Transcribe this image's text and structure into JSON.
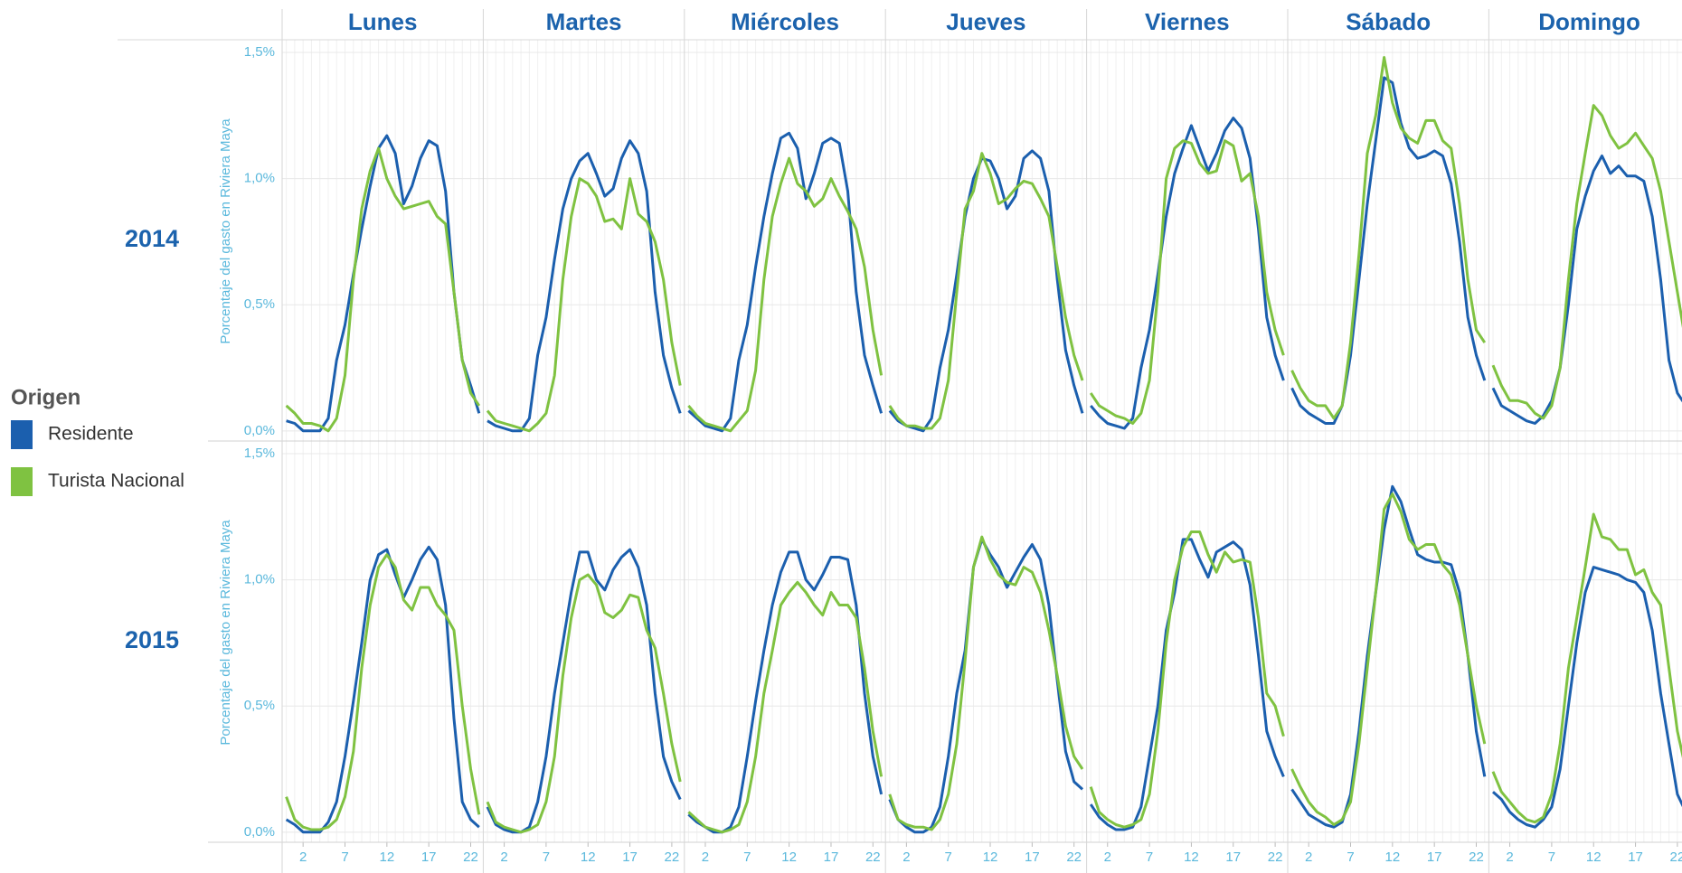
{
  "chart_data": {
    "type": "line",
    "columns": [
      "Lunes",
      "Martes",
      "Miércoles",
      "Jueves",
      "Viernes",
      "Sábado",
      "Domingo"
    ],
    "rows": [
      "2014",
      "2015"
    ],
    "y_label": "Porcentaje del gasto en Riviera Maya",
    "legend_title": "Origen",
    "x": [
      0,
      1,
      2,
      3,
      4,
      5,
      6,
      7,
      8,
      9,
      10,
      11,
      12,
      13,
      14,
      15,
      16,
      17,
      18,
      19,
      20,
      21,
      22,
      23
    ],
    "xlim": [
      -0.5,
      23.5
    ],
    "xticks": [
      2,
      7,
      12,
      17,
      22
    ],
    "ylim": [
      -0.04,
      1.55
    ],
    "yticks": [
      {
        "value": 0,
        "label": "0,0%"
      },
      {
        "value": 0.5,
        "label": "0,5%"
      },
      {
        "value": 1,
        "label": "1,0%"
      },
      {
        "value": 1.5,
        "label": "1,5%"
      }
    ],
    "grid": true,
    "series": [
      {
        "name": "Residente",
        "color": "#1b5fae",
        "values": [
          [
            [
              0.04,
              0.03,
              0.0,
              0.0,
              0.0,
              0.05,
              0.28,
              0.42,
              0.62,
              0.8,
              0.97,
              1.12,
              1.17,
              1.1,
              0.9,
              0.97,
              1.08,
              1.15,
              1.13,
              0.95,
              0.55,
              0.28,
              0.18,
              0.07
            ],
            [
              0.04,
              0.02,
              0.01,
              0.0,
              0.0,
              0.05,
              0.3,
              0.45,
              0.68,
              0.88,
              1.0,
              1.07,
              1.1,
              1.02,
              0.93,
              0.96,
              1.08,
              1.15,
              1.1,
              0.95,
              0.55,
              0.3,
              0.17,
              0.07
            ],
            [
              0.08,
              0.05,
              0.02,
              0.01,
              0.0,
              0.05,
              0.28,
              0.42,
              0.65,
              0.85,
              1.02,
              1.16,
              1.18,
              1.12,
              0.92,
              1.02,
              1.14,
              1.16,
              1.14,
              0.95,
              0.55,
              0.3,
              0.18,
              0.07
            ],
            [
              0.08,
              0.04,
              0.02,
              0.01,
              0.0,
              0.05,
              0.25,
              0.4,
              0.62,
              0.85,
              1.0,
              1.08,
              1.07,
              1.0,
              0.88,
              0.93,
              1.08,
              1.11,
              1.08,
              0.95,
              0.6,
              0.32,
              0.18,
              0.07
            ],
            [
              0.1,
              0.06,
              0.03,
              0.02,
              0.01,
              0.05,
              0.25,
              0.4,
              0.62,
              0.85,
              1.02,
              1.12,
              1.21,
              1.12,
              1.03,
              1.1,
              1.19,
              1.24,
              1.2,
              1.08,
              0.8,
              0.45,
              0.3,
              0.2
            ],
            [
              0.17,
              0.1,
              0.07,
              0.05,
              0.03,
              0.03,
              0.1,
              0.3,
              0.6,
              0.9,
              1.15,
              1.4,
              1.38,
              1.22,
              1.12,
              1.08,
              1.09,
              1.11,
              1.09,
              0.98,
              0.75,
              0.45,
              0.3,
              0.2
            ],
            [
              0.17,
              0.1,
              0.08,
              0.06,
              0.04,
              0.03,
              0.06,
              0.12,
              0.25,
              0.5,
              0.8,
              0.93,
              1.03,
              1.09,
              1.02,
              1.05,
              1.01,
              1.01,
              0.99,
              0.85,
              0.6,
              0.28,
              0.15,
              0.1
            ]
          ],
          [
            [
              0.05,
              0.03,
              0.0,
              0.0,
              0.0,
              0.04,
              0.12,
              0.3,
              0.52,
              0.75,
              1.0,
              1.1,
              1.12,
              1.02,
              0.93,
              1.0,
              1.08,
              1.13,
              1.08,
              0.9,
              0.45,
              0.12,
              0.05,
              0.02
            ],
            [
              0.1,
              0.03,
              0.01,
              0.0,
              0.0,
              0.02,
              0.12,
              0.3,
              0.55,
              0.75,
              0.95,
              1.11,
              1.11,
              1.0,
              0.96,
              1.04,
              1.09,
              1.12,
              1.05,
              0.9,
              0.55,
              0.3,
              0.2,
              0.13
            ],
            [
              0.07,
              0.04,
              0.02,
              0.0,
              0.0,
              0.02,
              0.1,
              0.3,
              0.52,
              0.72,
              0.9,
              1.03,
              1.11,
              1.11,
              1.0,
              0.96,
              1.02,
              1.09,
              1.09,
              1.08,
              0.9,
              0.55,
              0.3,
              0.15
            ],
            [
              0.13,
              0.05,
              0.02,
              0.0,
              0.0,
              0.02,
              0.1,
              0.3,
              0.55,
              0.72,
              1.05,
              1.16,
              1.1,
              1.05,
              0.97,
              1.03,
              1.09,
              1.14,
              1.08,
              0.9,
              0.6,
              0.32,
              0.2,
              0.17
            ],
            [
              0.11,
              0.06,
              0.03,
              0.01,
              0.01,
              0.02,
              0.1,
              0.3,
              0.5,
              0.8,
              0.95,
              1.16,
              1.16,
              1.08,
              1.01,
              1.11,
              1.13,
              1.15,
              1.12,
              0.98,
              0.7,
              0.4,
              0.3,
              0.22
            ],
            [
              0.17,
              0.12,
              0.07,
              0.05,
              0.03,
              0.02,
              0.04,
              0.15,
              0.4,
              0.7,
              0.95,
              1.2,
              1.37,
              1.31,
              1.2,
              1.1,
              1.08,
              1.07,
              1.07,
              1.06,
              0.95,
              0.7,
              0.4,
              0.22
            ],
            [
              0.16,
              0.13,
              0.08,
              0.05,
              0.03,
              0.02,
              0.05,
              0.1,
              0.25,
              0.5,
              0.75,
              0.95,
              1.05,
              1.04,
              1.03,
              1.02,
              1.0,
              0.99,
              0.95,
              0.8,
              0.55,
              0.35,
              0.15,
              0.08
            ]
          ]
        ]
      },
      {
        "name": "Turista Nacional",
        "color": "#7fc241",
        "values": [
          [
            [
              0.1,
              0.07,
              0.03,
              0.03,
              0.02,
              0.0,
              0.05,
              0.22,
              0.6,
              0.88,
              1.03,
              1.12,
              1.0,
              0.93,
              0.88,
              0.89,
              0.9,
              0.91,
              0.85,
              0.82,
              0.55,
              0.28,
              0.15,
              0.1
            ],
            [
              0.08,
              0.04,
              0.03,
              0.02,
              0.01,
              0.0,
              0.03,
              0.07,
              0.22,
              0.6,
              0.85,
              1.0,
              0.98,
              0.93,
              0.83,
              0.84,
              0.8,
              1.0,
              0.86,
              0.83,
              0.75,
              0.6,
              0.35,
              0.18
            ],
            [
              0.1,
              0.06,
              0.03,
              0.02,
              0.01,
              0.0,
              0.04,
              0.08,
              0.24,
              0.6,
              0.85,
              0.98,
              1.08,
              0.98,
              0.95,
              0.89,
              0.92,
              1.0,
              0.93,
              0.87,
              0.8,
              0.65,
              0.4,
              0.22
            ],
            [
              0.1,
              0.05,
              0.02,
              0.02,
              0.01,
              0.01,
              0.05,
              0.2,
              0.55,
              0.88,
              0.95,
              1.1,
              1.02,
              0.9,
              0.92,
              0.96,
              0.99,
              0.98,
              0.92,
              0.85,
              0.65,
              0.45,
              0.3,
              0.2
            ],
            [
              0.15,
              0.1,
              0.08,
              0.06,
              0.05,
              0.03,
              0.07,
              0.2,
              0.55,
              1.0,
              1.12,
              1.15,
              1.14,
              1.06,
              1.02,
              1.03,
              1.15,
              1.13,
              0.99,
              1.02,
              0.85,
              0.55,
              0.4,
              0.3
            ],
            [
              0.24,
              0.17,
              0.12,
              0.1,
              0.1,
              0.05,
              0.1,
              0.35,
              0.7,
              1.1,
              1.25,
              1.48,
              1.3,
              1.2,
              1.16,
              1.14,
              1.23,
              1.23,
              1.15,
              1.12,
              0.9,
              0.6,
              0.4,
              0.35
            ],
            [
              0.26,
              0.18,
              0.12,
              0.12,
              0.11,
              0.07,
              0.05,
              0.1,
              0.25,
              0.6,
              0.9,
              1.1,
              1.29,
              1.25,
              1.17,
              1.12,
              1.14,
              1.18,
              1.13,
              1.08,
              0.95,
              0.75,
              0.55,
              0.35
            ]
          ],
          [
            [
              0.14,
              0.05,
              0.02,
              0.01,
              0.01,
              0.02,
              0.05,
              0.14,
              0.32,
              0.65,
              0.9,
              1.05,
              1.1,
              1.05,
              0.92,
              0.88,
              0.97,
              0.97,
              0.9,
              0.86,
              0.8,
              0.5,
              0.25,
              0.07
            ],
            [
              0.12,
              0.04,
              0.02,
              0.01,
              0.0,
              0.01,
              0.03,
              0.12,
              0.3,
              0.62,
              0.85,
              1.0,
              1.02,
              0.98,
              0.87,
              0.85,
              0.88,
              0.94,
              0.93,
              0.8,
              0.73,
              0.55,
              0.35,
              0.2
            ],
            [
              0.08,
              0.05,
              0.02,
              0.01,
              0.0,
              0.01,
              0.03,
              0.12,
              0.3,
              0.55,
              0.72,
              0.9,
              0.95,
              0.99,
              0.95,
              0.9,
              0.86,
              0.95,
              0.9,
              0.9,
              0.85,
              0.65,
              0.4,
              0.22
            ],
            [
              0.15,
              0.05,
              0.03,
              0.02,
              0.02,
              0.01,
              0.05,
              0.15,
              0.35,
              0.68,
              1.05,
              1.17,
              1.08,
              1.02,
              0.99,
              0.98,
              1.05,
              1.03,
              0.95,
              0.8,
              0.62,
              0.42,
              0.3,
              0.25
            ],
            [
              0.18,
              0.08,
              0.05,
              0.03,
              0.02,
              0.03,
              0.05,
              0.15,
              0.4,
              0.75,
              1.0,
              1.13,
              1.19,
              1.19,
              1.1,
              1.03,
              1.11,
              1.07,
              1.08,
              1.07,
              0.85,
              0.55,
              0.5,
              0.38
            ],
            [
              0.25,
              0.18,
              0.12,
              0.08,
              0.06,
              0.03,
              0.05,
              0.12,
              0.35,
              0.65,
              0.95,
              1.28,
              1.34,
              1.27,
              1.16,
              1.12,
              1.14,
              1.14,
              1.06,
              1.02,
              0.9,
              0.7,
              0.5,
              0.35
            ],
            [
              0.24,
              0.16,
              0.12,
              0.08,
              0.05,
              0.04,
              0.06,
              0.15,
              0.35,
              0.65,
              0.85,
              1.05,
              1.26,
              1.17,
              1.16,
              1.12,
              1.12,
              1.02,
              1.04,
              0.95,
              0.9,
              0.65,
              0.4,
              0.25
            ]
          ]
        ]
      }
    ]
  }
}
